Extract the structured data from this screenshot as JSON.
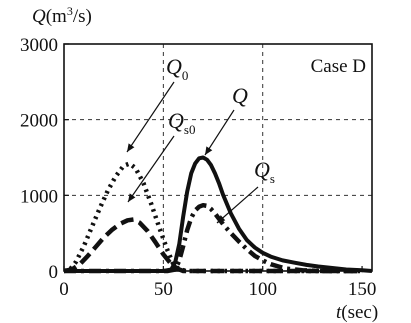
{
  "chart_data": {
    "type": "line",
    "title": "",
    "xlabel": "t(sec)",
    "ylabel": "Q(m³/s)",
    "xlim": [
      0,
      155
    ],
    "ylim": [
      0,
      3000
    ],
    "x_ticks": [
      "0",
      "50",
      "100",
      "150"
    ],
    "x_tick_values": [
      0,
      50,
      100,
      150
    ],
    "y_ticks": [
      "0",
      "1000",
      "2000",
      "3000"
    ],
    "y_tick_values": [
      0,
      1000,
      2000,
      3000
    ],
    "grid": {
      "x": [
        50,
        100
      ],
      "y": [
        1000,
        2000
      ],
      "style": "dashed"
    },
    "case_label": "Case D",
    "series": [
      {
        "name": "Q_0",
        "style": "dotted",
        "x": [
          0,
          3,
          6,
          10,
          14,
          18,
          22,
          26,
          30,
          33,
          36,
          40,
          44,
          48,
          52,
          55,
          58,
          62,
          70,
          80,
          100,
          150
        ],
        "y": [
          0,
          20,
          120,
          330,
          580,
          830,
          1060,
          1250,
          1390,
          1420,
          1360,
          1160,
          880,
          570,
          280,
          90,
          20,
          0,
          0,
          0,
          0,
          0
        ]
      },
      {
        "name": "Q_s0",
        "style": "dashed",
        "x": [
          0,
          4,
          8,
          12,
          16,
          20,
          24,
          28,
          32,
          35,
          38,
          42,
          46,
          50,
          54,
          57,
          60,
          64,
          70,
          80,
          100,
          150
        ],
        "y": [
          0,
          20,
          90,
          200,
          320,
          440,
          540,
          620,
          670,
          680,
          640,
          530,
          380,
          220,
          90,
          30,
          0,
          0,
          0,
          0,
          0,
          0
        ]
      },
      {
        "name": "Q",
        "style": "solid",
        "x": [
          0,
          50,
          54,
          56,
          58,
          60,
          62,
          64,
          66,
          68,
          70,
          72,
          74,
          76,
          78,
          80,
          84,
          88,
          92,
          96,
          100,
          104,
          110,
          116,
          122,
          128,
          135,
          142,
          150,
          155
        ],
        "y": [
          0,
          0,
          20,
          120,
          360,
          720,
          1050,
          1290,
          1420,
          1490,
          1500,
          1470,
          1400,
          1290,
          1160,
          1010,
          760,
          560,
          410,
          310,
          240,
          190,
          140,
          110,
          80,
          60,
          40,
          20,
          10,
          0
        ]
      },
      {
        "name": "Q_s",
        "style": "dashdot",
        "x": [
          0,
          52,
          56,
          58,
          60,
          62,
          64,
          66,
          68,
          70,
          72,
          74,
          76,
          78,
          80,
          84,
          88,
          92,
          96,
          100,
          104,
          108,
          112,
          120,
          130,
          150
        ],
        "y": [
          0,
          0,
          20,
          140,
          330,
          540,
          700,
          800,
          850,
          870,
          860,
          820,
          760,
          690,
          620,
          500,
          390,
          290,
          200,
          140,
          90,
          60,
          30,
          10,
          0,
          0
        ]
      }
    ],
    "annotations": [
      {
        "text": "Q",
        "sub": "0",
        "points_to": "Q_0"
      },
      {
        "text": "Q",
        "sub": "s0",
        "points_to": "Q_s0"
      },
      {
        "text": "Q",
        "sub": "",
        "points_to": "Q"
      },
      {
        "text": "Q",
        "sub": "s",
        "points_to": "Q_s"
      }
    ]
  }
}
